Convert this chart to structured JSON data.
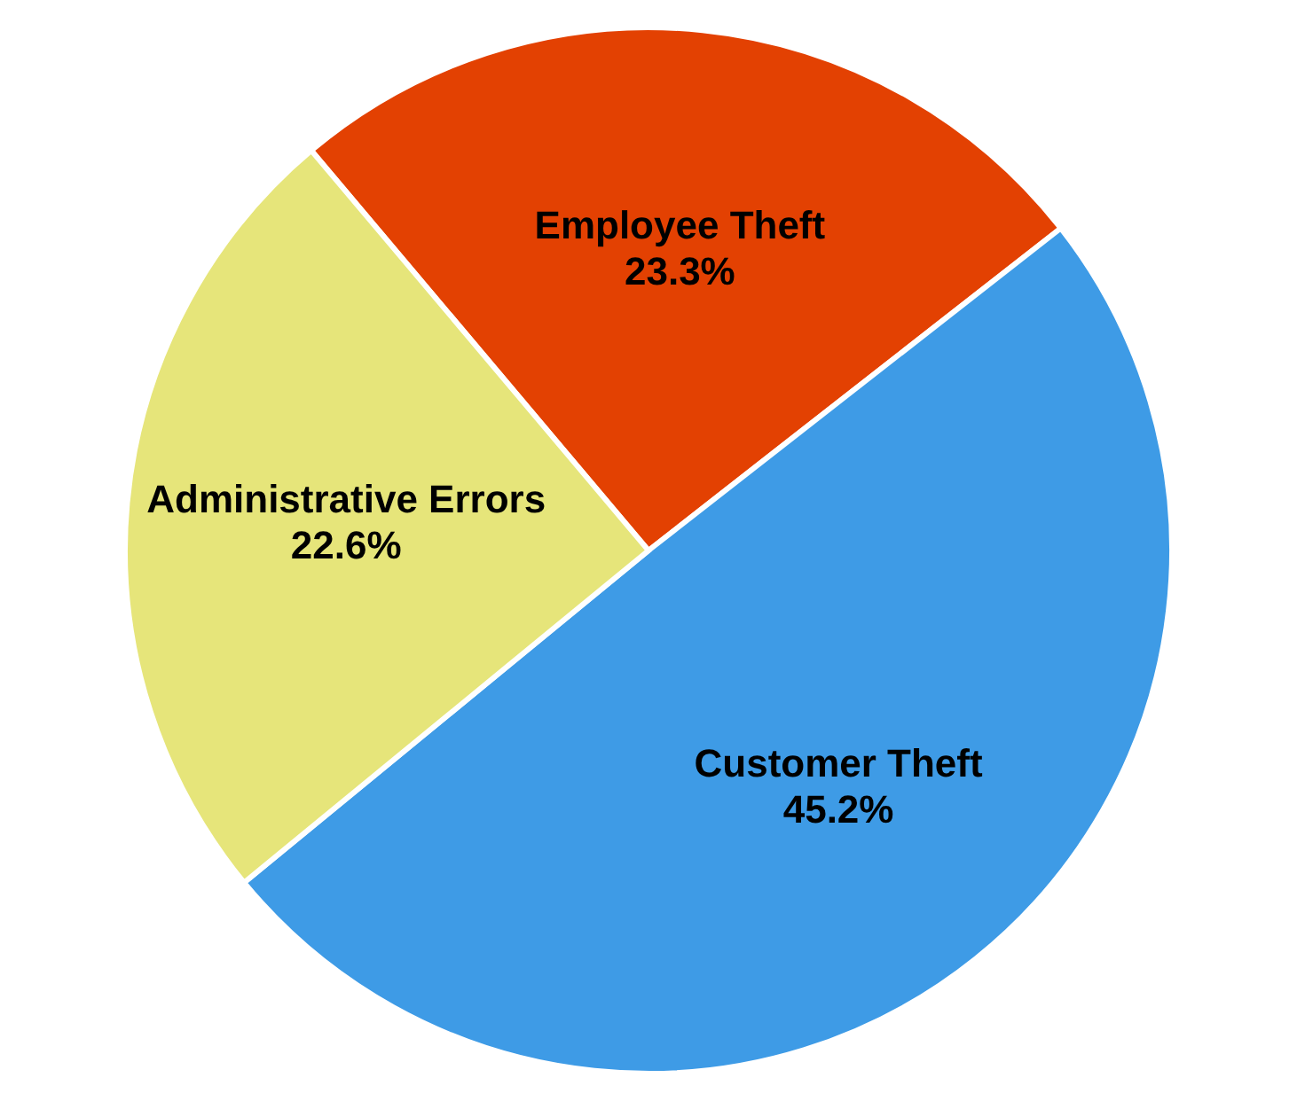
{
  "chart_data": {
    "type": "pie",
    "categories": [
      "Employee Theft",
      "Customer Theft",
      "Administrative Errors"
    ],
    "values": [
      23.3,
      45.2,
      22.6
    ],
    "value_labels": [
      "23.3%",
      "45.2%",
      "22.6%"
    ],
    "colors": [
      "#e34102",
      "#3e9be6",
      "#e6e57a"
    ]
  }
}
